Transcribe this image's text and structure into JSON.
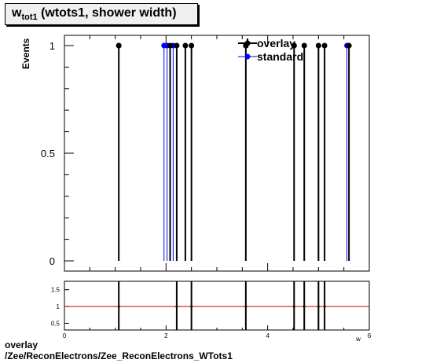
{
  "title": {
    "main": "w",
    "sub": "tot1",
    "rest": " (wtots1, shower width)"
  },
  "ylabel": "Events",
  "footer": {
    "line1": "overlay",
    "line2": "/Zee/ReconElectrons/Zee_ReconElectrons_WTots1"
  },
  "legend": {
    "overlay": "overlay",
    "standard": "standard"
  },
  "colors": {
    "overlay": "#000000",
    "standard": "#0000ff",
    "ratio_line": "#cc0000"
  },
  "chart_data": {
    "type": "scatter",
    "x_range": [
      0,
      6
    ],
    "main": {
      "ylim": [
        0,
        1.05
      ],
      "y_ticks": [
        {
          "v": 0,
          "label": "0"
        },
        {
          "v": 0.5,
          "label": "0.5"
        },
        {
          "v": 1,
          "label": "1"
        }
      ]
    },
    "ratio": {
      "ylim": [
        0.3,
        1.75
      ],
      "y_ticks": [
        {
          "v": 0.5,
          "label": "0.5"
        },
        {
          "v": 1,
          "label": "1"
        },
        {
          "v": 1.5,
          "label": "1.5"
        }
      ],
      "reference": 1
    },
    "x_ticks": [
      {
        "v": 0,
        "label": "0"
      },
      {
        "v": 2,
        "label": "2"
      },
      {
        "v": 4,
        "label": "4"
      },
      {
        "v": 6,
        "label": "6"
      }
    ],
    "x_axis_title": "w",
    "series": [
      {
        "name": "overlay",
        "x": [
          1.07,
          2.08,
          2.21,
          2.38,
          2.5,
          3.57,
          4.52,
          4.72,
          5.0,
          5.12,
          5.6
        ],
        "y": [
          1,
          1,
          1,
          1,
          1,
          1,
          1,
          1,
          1,
          1,
          1
        ]
      },
      {
        "name": "standard",
        "x": [
          1.07,
          1.96,
          2.02,
          2.14,
          3.57,
          4.52,
          5.56
        ],
        "y": [
          1,
          1,
          1,
          1,
          1,
          1,
          1
        ]
      }
    ],
    "ratio_points": [
      {
        "x": 1.07,
        "y": 1
      },
      {
        "x": 2.21,
        "y": 1
      },
      {
        "x": 2.5,
        "y": 1
      },
      {
        "x": 3.57,
        "y": 1
      },
      {
        "x": 4.52,
        "y": 1
      },
      {
        "x": 4.72,
        "y": 1
      },
      {
        "x": 5.0,
        "y": 1
      },
      {
        "x": 5.12,
        "y": 1
      }
    ],
    "ratio_bars": [
      1.07,
      2.21,
      2.5,
      3.57,
      4.52,
      4.72,
      5.0,
      5.12
    ]
  }
}
